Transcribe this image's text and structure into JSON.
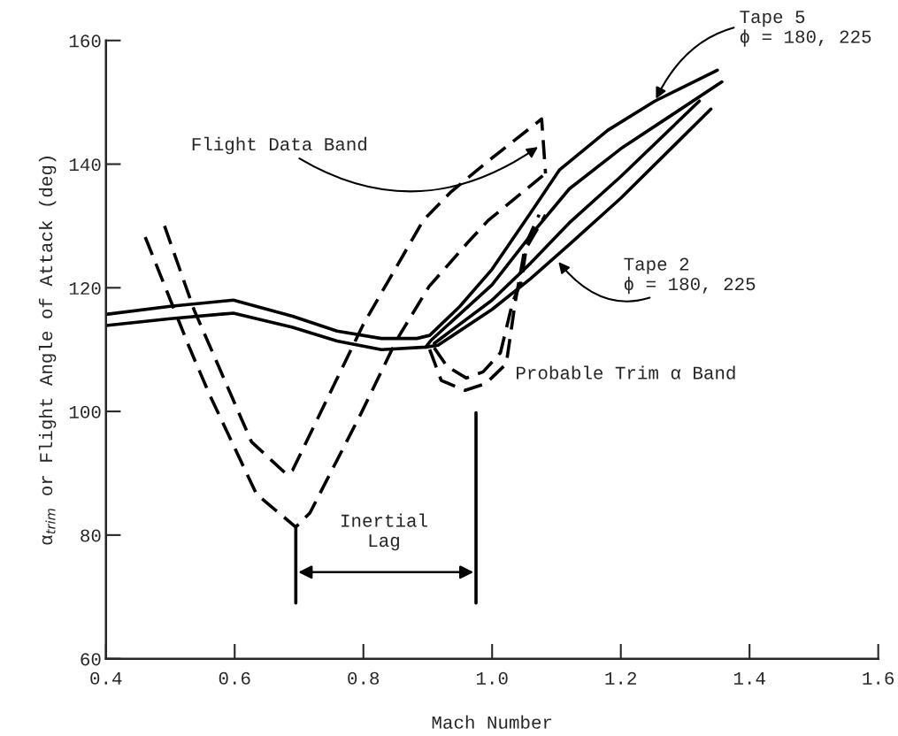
{
  "chart_data": {
    "type": "line",
    "xlabel": "Mach Number",
    "ylabel": "α$_{trim}$ or Flight Angle of Attack (deg)",
    "xlim": [
      0.4,
      1.6
    ],
    "xticks": [
      0.4,
      0.6,
      0.8,
      {
        "value": 1.0,
        "label": "1.0"
      },
      1.2,
      1.4,
      1.6
    ],
    "ylim": [
      60,
      160
    ],
    "yticks": [
      60,
      80,
      100,
      120,
      140,
      160
    ],
    "grid": false,
    "legend": false,
    "marker": "none",
    "series": [
      {
        "color": "#000000",
        "line_style": "solid",
        "x": [
          0.4,
          0.5,
          0.598,
          0.69,
          0.759,
          0.828,
          0.883,
          0.903,
          0.95,
          1.0,
          1.059,
          1.105,
          1.18,
          1.253,
          1.35
        ],
        "values": [
          115.7,
          117.0,
          118.0,
          115.4,
          113.0,
          111.8,
          111.8,
          112.3,
          117.0,
          123.0,
          132.0,
          139.1,
          145.5,
          150.2,
          155.2
        ]
      },
      {
        "color": "#000000",
        "line_style": "solid",
        "x": [
          0.4,
          0.5,
          0.598,
          0.69,
          0.759,
          0.828,
          0.897,
          0.905,
          1.0,
          1.06,
          1.12,
          1.2,
          1.28,
          1.357
        ],
        "values": [
          113.9,
          115.0,
          115.9,
          113.6,
          111.4,
          110.0,
          110.4,
          111.5,
          120.5,
          128.5,
          136.0,
          142.5,
          148.0,
          153.3
        ]
      },
      {
        "color": "#000000",
        "line_style": "solid",
        "x": [
          0.91,
          1.0,
          1.06,
          1.12,
          1.2,
          1.322
        ],
        "values": [
          111.0,
          118.0,
          124.0,
          130.5,
          138.0,
          150.2
        ]
      },
      {
        "color": "#000000",
        "line_style": "solid",
        "x": [
          0.897,
          0.916,
          1.0,
          1.06,
          1.12,
          1.2,
          1.34
        ],
        "values": [
          110.4,
          110.7,
          116.5,
          121.5,
          127.0,
          134.5,
          148.9
        ]
      },
      {
        "color": "#000000",
        "line_style": "dashed",
        "x": [
          0.491,
          0.537,
          0.626,
          0.681,
          0.69,
          0.8,
          0.893,
          0.935,
          0.994,
          1.077,
          1.083
        ],
        "values": [
          130.0,
          116.4,
          95.1,
          89.8,
          90.5,
          114.1,
          130.9,
          135.4,
          140.5,
          147.3,
          138.5
        ]
      },
      {
        "color": "#000000",
        "line_style": "dashed",
        "x": [
          0.461,
          0.529,
          0.561,
          0.634,
          0.695,
          0.717,
          0.796,
          0.842,
          0.856,
          0.902,
          0.962,
          0.994,
          1.083
        ],
        "values": [
          128.2,
          110.5,
          102.7,
          86.6,
          81.3,
          83.6,
          99.6,
          109.5,
          112.3,
          120.2,
          127.3,
          130.9,
          138.5
        ]
      },
      {
        "color": "#000000",
        "line_style": "dashed",
        "x": [
          0.903,
          0.921,
          0.958,
          0.99,
          1.022,
          1.036,
          1.05,
          1.083
        ],
        "values": [
          110.0,
          105.0,
          103.4,
          104.5,
          107.7,
          117.7,
          125.9,
          131.8
        ]
      },
      {
        "color": "#000000",
        "line_style": "dashed",
        "x": [
          0.91,
          0.93,
          0.96,
          0.986,
          1.013,
          1.032,
          1.045,
          1.055,
          1.073
        ],
        "values": [
          110.3,
          107.3,
          105.4,
          106.4,
          109.5,
          117.7,
          120.9,
          127.7,
          131.8
        ]
      },
      {
        "color": "#000000",
        "line_style": "solid",
        "x": [
          0.695,
          0.695,
          0.695
        ],
        "values": [
          81.1,
          74.0,
          69.0
        ]
      },
      {
        "color": "#000000",
        "line_style": "solid",
        "x": [
          0.975,
          0.975,
          0.975
        ],
        "values": [
          99.8,
          74.0,
          69.0
        ]
      }
    ],
    "annotations": [
      "Flight Data Band",
      {
        "text": "Tape 5\nϕ = 180, 225",
        "x": 1.253,
        "y": 150.2
      },
      "Tape 2\nϕ = 180, 225",
      "Probable Trim α Band",
      "Inertial\nLag"
    ]
  }
}
